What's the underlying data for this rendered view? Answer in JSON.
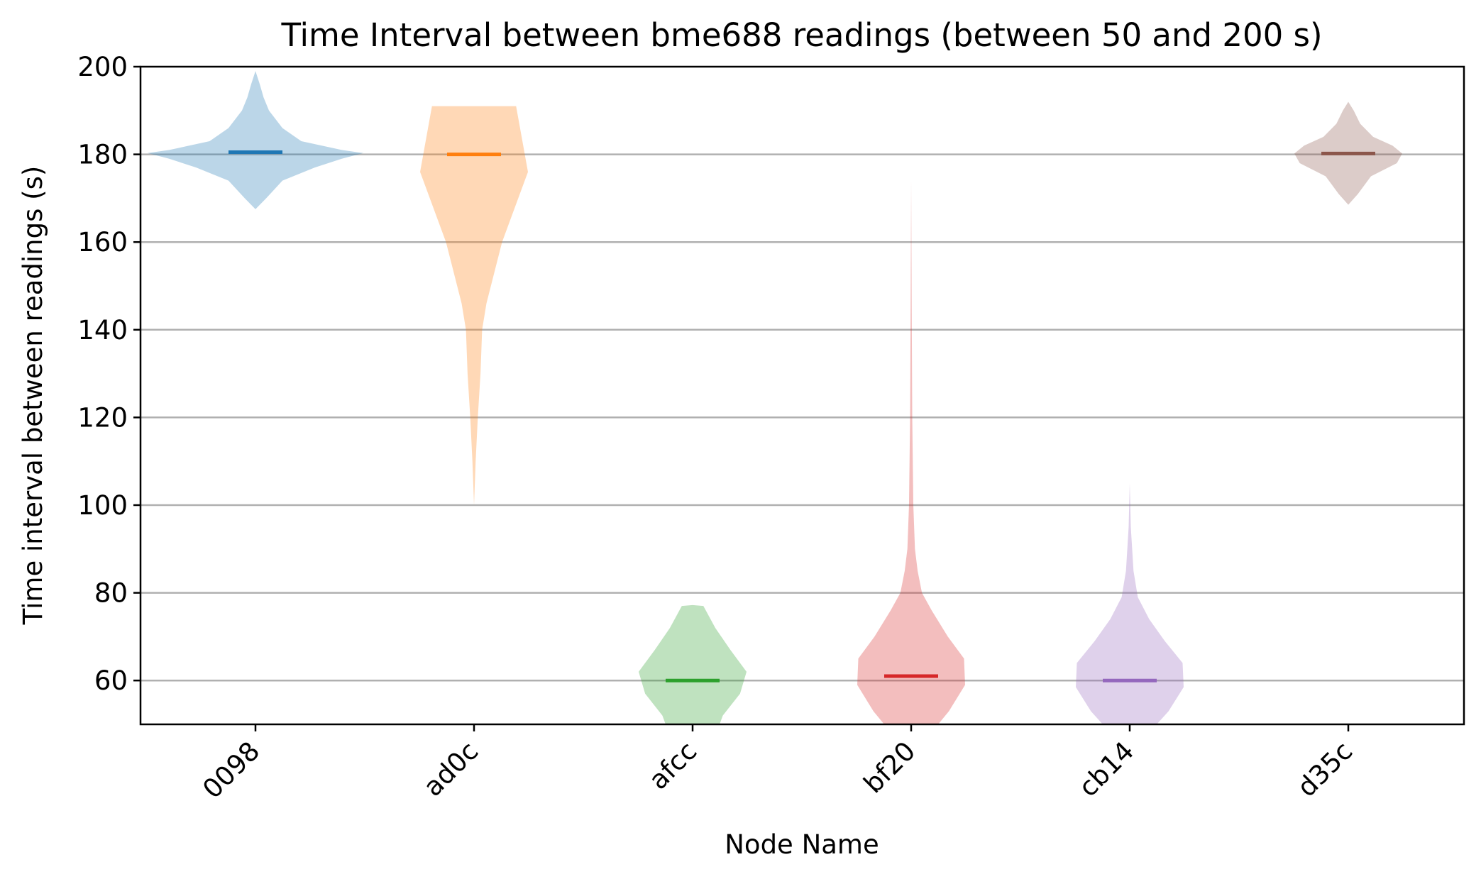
{
  "chart_data": {
    "type": "violin",
    "title": "Time Interval between bme688 readings (between 50 and 200 s)",
    "xlabel": "Node Name",
    "ylabel": "Time interval between readings (s)",
    "ylim": [
      50,
      200
    ],
    "yticks": [
      60,
      80,
      100,
      120,
      140,
      160,
      180,
      200
    ],
    "grid": "y",
    "categories": [
      "0098",
      "ad0c",
      "afcc",
      "bf20",
      "cb14",
      "d35c"
    ],
    "series": [
      {
        "category": "0098",
        "color": "#1f77b4",
        "median": 180.5,
        "profile": [
          [
            167.5,
            0.0
          ],
          [
            170,
            0.2
          ],
          [
            174,
            0.5
          ],
          [
            177,
            1.1
          ],
          [
            179,
            1.6
          ],
          [
            180.3,
            2.0
          ],
          [
            181,
            1.6
          ],
          [
            183,
            0.85
          ],
          [
            186,
            0.5
          ],
          [
            190,
            0.25
          ],
          [
            193,
            0.15
          ],
          [
            196,
            0.08
          ],
          [
            199,
            0.0
          ]
        ]
      },
      {
        "category": "ad0c",
        "color": "#ff7f0e",
        "median": 180,
        "profile": [
          [
            100,
            0.0
          ],
          [
            110,
            0.03
          ],
          [
            120,
            0.07
          ],
          [
            130,
            0.12
          ],
          [
            140,
            0.15
          ],
          [
            146,
            0.23
          ],
          [
            160,
            0.52
          ],
          [
            176,
            1.0
          ],
          [
            191,
            0.78
          ]
        ]
      },
      {
        "category": "afcc",
        "color": "#2ca02c",
        "median": 60,
        "profile": [
          [
            50,
            0.5
          ],
          [
            52,
            0.56
          ],
          [
            57,
            0.88
          ],
          [
            62,
            1.0
          ],
          [
            67,
            0.7
          ],
          [
            72,
            0.42
          ],
          [
            77,
            0.2
          ],
          [
            77.2,
            0.0
          ]
        ]
      },
      {
        "category": "bf20",
        "color": "#d62728",
        "median": 61,
        "profile": [
          [
            50,
            0.5
          ],
          [
            53,
            0.7
          ],
          [
            59,
            1.0
          ],
          [
            65,
            0.98
          ],
          [
            70,
            0.68
          ],
          [
            76,
            0.38
          ],
          [
            80,
            0.2
          ],
          [
            85,
            0.12
          ],
          [
            90,
            0.07
          ],
          [
            100,
            0.04
          ],
          [
            120,
            0.02
          ],
          [
            145,
            0.01
          ],
          [
            174,
            0.0
          ]
        ]
      },
      {
        "category": "cb14",
        "color": "#9467bd",
        "median": 60,
        "profile": [
          [
            50,
            0.5
          ],
          [
            53,
            0.72
          ],
          [
            58.5,
            1.0
          ],
          [
            64,
            0.98
          ],
          [
            69,
            0.65
          ],
          [
            74,
            0.36
          ],
          [
            79,
            0.15
          ],
          [
            85,
            0.07
          ],
          [
            95,
            0.02
          ],
          [
            105,
            0.0
          ]
        ]
      },
      {
        "category": "d35c",
        "color": "#8c564b",
        "median": 180.2,
        "profile": [
          [
            168.5,
            0.0
          ],
          [
            171,
            0.18
          ],
          [
            175,
            0.42
          ],
          [
            178,
            0.9
          ],
          [
            180.2,
            1.0
          ],
          [
            182,
            0.82
          ],
          [
            184,
            0.46
          ],
          [
            187,
            0.22
          ],
          [
            190,
            0.1
          ],
          [
            192,
            0.0
          ]
        ]
      }
    ]
  }
}
